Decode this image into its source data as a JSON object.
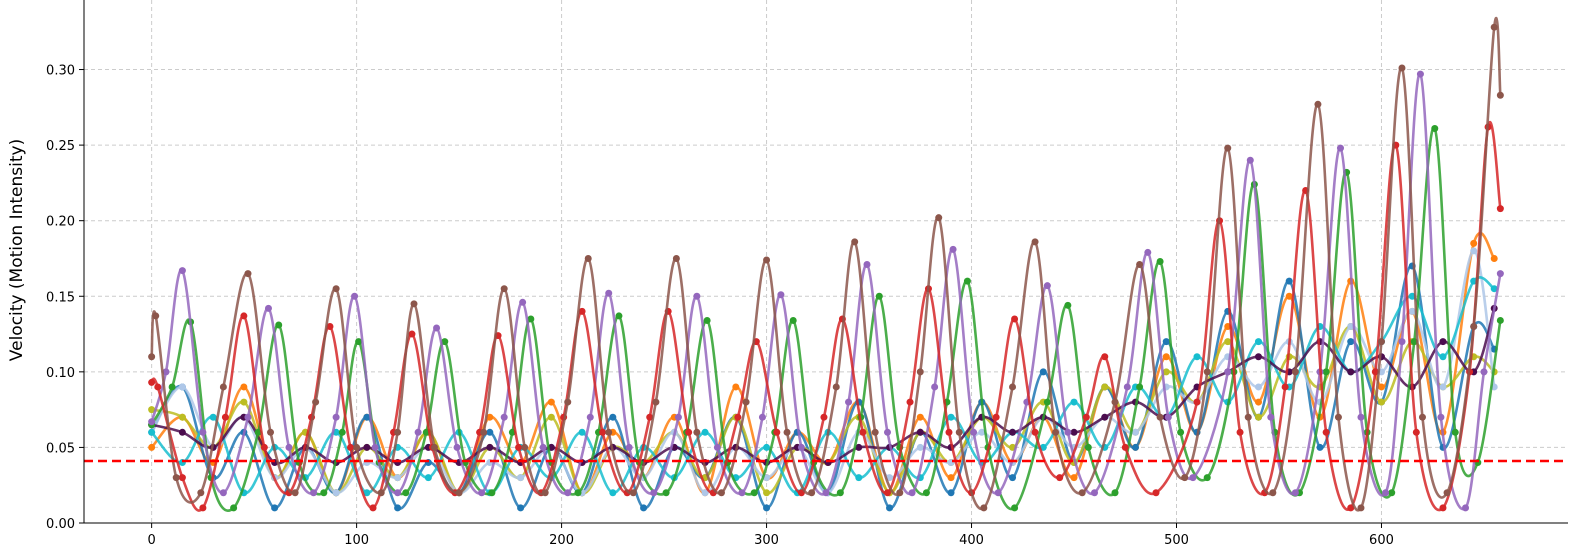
{
  "chart_data": {
    "type": "line",
    "y_label": "Velocity (Motion Intensity)",
    "xlim": [
      -33,
      691
    ],
    "ylim": [
      0,
      0.346
    ],
    "xticks": [
      0,
      100,
      200,
      300,
      400,
      500,
      600
    ],
    "yticks": [
      {
        "value": 0,
        "label": "0.00"
      },
      {
        "value": 0.05,
        "label": "0.05"
      },
      {
        "value": 0.1,
        "label": "0.10"
      },
      {
        "value": 0.15,
        "label": "0.15"
      },
      {
        "value": 0.2,
        "label": "0.20"
      },
      {
        "value": 0.25,
        "label": "0.25"
      },
      {
        "value": 0.3,
        "label": "0.30"
      }
    ],
    "grid": true,
    "threshold": {
      "value": 0.041,
      "color": "#ff0000"
    },
    "x": [
      0,
      15,
      30,
      45,
      60,
      75,
      90,
      105,
      120,
      135,
      150,
      165,
      180,
      195,
      210,
      225,
      240,
      255,
      270,
      285,
      300,
      315,
      330,
      345,
      360,
      375,
      390,
      405,
      420,
      435,
      450,
      465,
      480,
      495,
      510,
      525,
      540,
      555,
      570,
      585,
      600,
      615,
      630,
      645,
      655
    ],
    "series": [
      {
        "color": "#ff7f0e",
        "values": [
          0.05,
          0.07,
          0.04,
          0.09,
          0.03,
          0.06,
          0.02,
          0.07,
          0.03,
          0.06,
          0.02,
          0.07,
          0.04,
          0.08,
          0.02,
          0.06,
          0.03,
          0.07,
          0.02,
          0.09,
          0.03,
          0.06,
          0.04,
          0.08,
          0.02,
          0.07,
          0.03,
          0.08,
          0.04,
          0.07,
          0.03,
          0.09,
          0.05,
          0.11,
          0.06,
          0.13,
          0.08,
          0.15,
          0.07,
          0.16,
          0.09,
          0.14,
          0.06,
          0.185,
          0.175
        ]
      },
      {
        "color": "#1f77b4",
        "values": [
          0.06,
          0.09,
          0.03,
          0.06,
          0.01,
          0.05,
          0.02,
          0.07,
          0.01,
          0.04,
          0.02,
          0.06,
          0.01,
          0.05,
          0.02,
          0.07,
          0.01,
          0.05,
          0.03,
          0.07,
          0.01,
          0.06,
          0.02,
          0.08,
          0.01,
          0.06,
          0.02,
          0.08,
          0.03,
          0.1,
          0.04,
          0.09,
          0.05,
          0.12,
          0.06,
          0.14,
          0.07,
          0.16,
          0.05,
          0.12,
          0.08,
          0.17,
          0.05,
          0.13,
          0.115
        ]
      },
      {
        "color": "#bcbd22",
        "values": [
          0.075,
          0.07,
          0.05,
          0.08,
          0.03,
          0.06,
          0.02,
          0.05,
          0.03,
          0.06,
          0.02,
          0.05,
          0.03,
          0.07,
          0.02,
          0.05,
          0.04,
          0.06,
          0.03,
          0.07,
          0.02,
          0.05,
          0.04,
          0.07,
          0.02,
          0.06,
          0.04,
          0.07,
          0.05,
          0.08,
          0.04,
          0.09,
          0.06,
          0.1,
          0.08,
          0.12,
          0.07,
          0.11,
          0.09,
          0.13,
          0.08,
          0.12,
          0.09,
          0.11,
          0.1
        ]
      },
      {
        "color": "#aec7e8",
        "values": [
          0.06,
          0.09,
          0.05,
          0.07,
          0.03,
          0.05,
          0.02,
          0.04,
          0.03,
          0.05,
          0.02,
          0.04,
          0.03,
          0.05,
          0.02,
          0.05,
          0.03,
          0.06,
          0.02,
          0.05,
          0.03,
          0.05,
          0.02,
          0.06,
          0.03,
          0.05,
          0.04,
          0.06,
          0.04,
          0.07,
          0.05,
          0.07,
          0.06,
          0.09,
          0.08,
          0.11,
          0.09,
          0.12,
          0.08,
          0.13,
          0.1,
          0.14,
          0.09,
          0.18,
          0.09
        ]
      },
      {
        "color": "#17becf",
        "values": [
          0.06,
          0.04,
          0.07,
          0.02,
          0.05,
          0.03,
          0.06,
          0.02,
          0.05,
          0.03,
          0.06,
          0.02,
          0.05,
          0.03,
          0.06,
          0.02,
          0.05,
          0.03,
          0.06,
          0.03,
          0.05,
          0.02,
          0.06,
          0.03,
          0.05,
          0.03,
          0.07,
          0.04,
          0.06,
          0.05,
          0.08,
          0.05,
          0.09,
          0.07,
          0.11,
          0.08,
          0.12,
          0.09,
          0.13,
          0.1,
          0.12,
          0.15,
          0.11,
          0.16,
          0.155
        ]
      },
      {
        "color": "#4b0c4e",
        "values": [
          0.065,
          0.06,
          0.05,
          0.07,
          0.04,
          0.05,
          0.04,
          0.05,
          0.04,
          0.05,
          0.04,
          0.05,
          0.04,
          0.05,
          0.04,
          0.05,
          0.04,
          0.05,
          0.04,
          0.05,
          0.04,
          0.05,
          0.04,
          0.05,
          0.05,
          0.06,
          0.05,
          0.07,
          0.06,
          0.07,
          0.06,
          0.07,
          0.08,
          0.07,
          0.09,
          0.1,
          0.11,
          0.1,
          0.12,
          0.1,
          0.11,
          0.09,
          0.12,
          0.1,
          0.142
        ]
      },
      {
        "color": "#2ca02c",
        "x": [
          0,
          10,
          19,
          29,
          40,
          52,
          62,
          72,
          84,
          93,
          101,
          111,
          124,
          134,
          143,
          153,
          166,
          176,
          185,
          195,
          208,
          218,
          228,
          238,
          251,
          261,
          271,
          281,
          294,
          304,
          313,
          323,
          336,
          346,
          355,
          365,
          378,
          388,
          398,
          408,
          421,
          437,
          447,
          457,
          470,
          482,
          492,
          502,
          515,
          528,
          538,
          548,
          560,
          573,
          583,
          593,
          605,
          616,
          626,
          636,
          647,
          658
        ],
        "values": [
          0.065,
          0.09,
          0.133,
          0.03,
          0.01,
          0.06,
          0.131,
          0.04,
          0.02,
          0.06,
          0.12,
          0.04,
          0.02,
          0.06,
          0.12,
          0.04,
          0.02,
          0.06,
          0.135,
          0.04,
          0.02,
          0.06,
          0.137,
          0.04,
          0.02,
          0.06,
          0.134,
          0.04,
          0.02,
          0.06,
          0.134,
          0.04,
          0.02,
          0.07,
          0.15,
          0.05,
          0.02,
          0.08,
          0.16,
          0.05,
          0.01,
          0.08,
          0.144,
          0.05,
          0.02,
          0.09,
          0.173,
          0.06,
          0.03,
          0.1,
          0.224,
          0.06,
          0.02,
          0.1,
          0.232,
          0.06,
          0.02,
          0.12,
          0.261,
          0.06,
          0.04,
          0.134
        ]
      },
      {
        "color": "#9467bd",
        "x": [
          0,
          7,
          15,
          25,
          35,
          47,
          57,
          67,
          79,
          90,
          99,
          109,
          120,
          130,
          139,
          149,
          161,
          172,
          181,
          191,
          203,
          214,
          223,
          233,
          245,
          257,
          266,
          276,
          288,
          298,
          307,
          317,
          329,
          340,
          349,
          359,
          371,
          382,
          391,
          401,
          413,
          427,
          437,
          447,
          460,
          476,
          486,
          496,
          508,
          525,
          536,
          546,
          558,
          570,
          580,
          590,
          602,
          610,
          619,
          629,
          641,
          650,
          658
        ],
        "values": [
          0.067,
          0.1,
          0.167,
          0.06,
          0.02,
          0.07,
          0.142,
          0.05,
          0.02,
          0.07,
          0.15,
          0.05,
          0.02,
          0.06,
          0.129,
          0.05,
          0.02,
          0.07,
          0.146,
          0.05,
          0.02,
          0.07,
          0.152,
          0.05,
          0.02,
          0.07,
          0.15,
          0.05,
          0.02,
          0.07,
          0.151,
          0.05,
          0.02,
          0.08,
          0.171,
          0.06,
          0.02,
          0.09,
          0.181,
          0.06,
          0.02,
          0.08,
          0.157,
          0.06,
          0.02,
          0.09,
          0.179,
          0.07,
          0.03,
          0.1,
          0.24,
          0.07,
          0.02,
          0.1,
          0.248,
          0.07,
          0.02,
          0.12,
          0.297,
          0.07,
          0.01,
          0.1,
          0.165
        ]
      },
      {
        "color": "#d62728",
        "x": [
          0,
          3,
          15,
          25,
          36,
          45,
          55,
          67,
          78,
          87,
          97,
          108,
          118,
          127,
          137,
          148,
          160,
          169,
          179,
          190,
          201,
          210,
          220,
          232,
          243,
          252,
          262,
          274,
          286,
          295,
          305,
          317,
          328,
          337,
          347,
          359,
          370,
          379,
          389,
          400,
          412,
          421,
          431,
          443,
          456,
          465,
          475,
          490,
          510,
          521,
          531,
          543,
          553,
          563,
          573,
          585,
          597,
          607,
          617,
          630,
          643,
          652,
          658
        ],
        "values": [
          0.093,
          0.09,
          0.03,
          0.01,
          0.07,
          0.137,
          0.05,
          0.02,
          0.07,
          0.13,
          0.05,
          0.01,
          0.06,
          0.125,
          0.05,
          0.02,
          0.06,
          0.124,
          0.05,
          0.02,
          0.07,
          0.14,
          0.06,
          0.02,
          0.07,
          0.14,
          0.06,
          0.02,
          0.07,
          0.12,
          0.06,
          0.02,
          0.07,
          0.135,
          0.06,
          0.02,
          0.08,
          0.155,
          0.06,
          0.02,
          0.07,
          0.135,
          0.06,
          0.03,
          0.07,
          0.11,
          0.05,
          0.02,
          0.08,
          0.2,
          0.06,
          0.02,
          0.09,
          0.22,
          0.06,
          0.01,
          0.1,
          0.25,
          0.06,
          0.01,
          0.1,
          0.262,
          0.208
        ]
      },
      {
        "color": "#8c564b",
        "x": [
          0,
          2,
          12,
          24,
          35,
          47,
          58,
          70,
          80,
          90,
          100,
          112,
          120,
          128,
          138,
          150,
          162,
          172,
          182,
          192,
          203,
          213,
          223,
          235,
          246,
          256,
          266,
          278,
          290,
          300,
          310,
          322,
          334,
          343,
          353,
          365,
          375,
          384,
          394,
          406,
          420,
          431,
          441,
          454,
          470,
          482,
          492,
          504,
          515,
          525,
          535,
          547,
          558,
          569,
          579,
          590,
          600,
          610,
          620,
          632,
          645,
          655,
          658
        ],
        "values": [
          0.11,
          0.137,
          0.03,
          0.02,
          0.09,
          0.165,
          0.06,
          0.02,
          0.08,
          0.155,
          0.05,
          0.02,
          0.06,
          0.145,
          0.05,
          0.02,
          0.06,
          0.155,
          0.05,
          0.02,
          0.08,
          0.175,
          0.06,
          0.02,
          0.08,
          0.175,
          0.06,
          0.02,
          0.08,
          0.174,
          0.06,
          0.02,
          0.09,
          0.186,
          0.06,
          0.02,
          0.1,
          0.202,
          0.06,
          0.01,
          0.09,
          0.186,
          0.06,
          0.02,
          0.08,
          0.171,
          0.07,
          0.03,
          0.1,
          0.248,
          0.07,
          0.02,
          0.1,
          0.277,
          0.07,
          0.01,
          0.12,
          0.301,
          0.07,
          0.02,
          0.13,
          0.328,
          0.283
        ]
      }
    ]
  }
}
